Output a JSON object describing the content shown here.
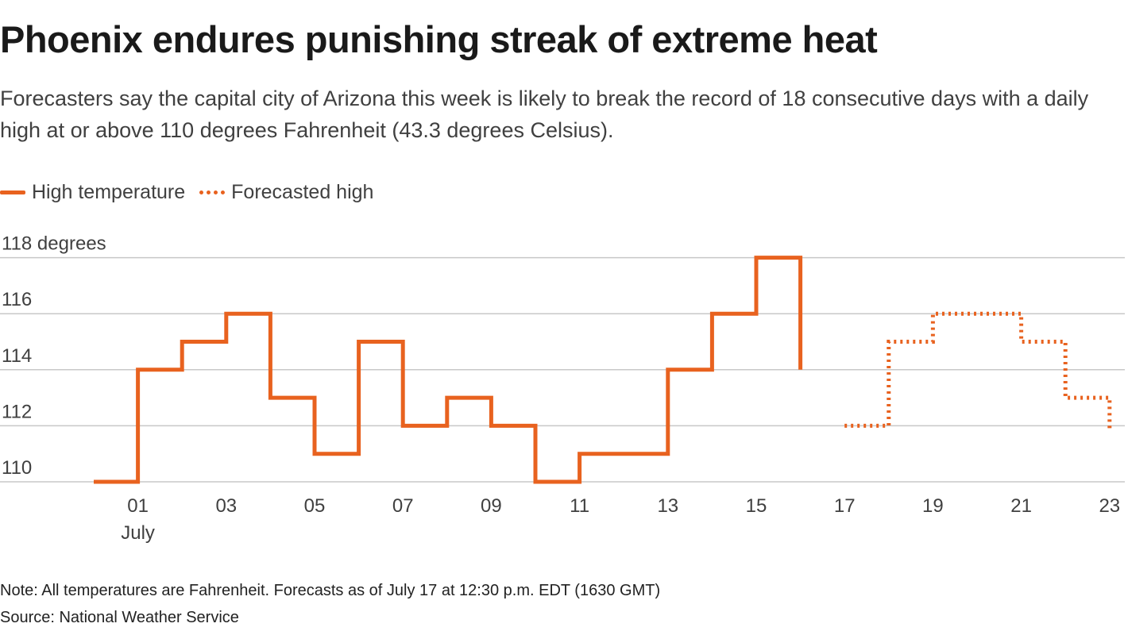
{
  "header": {
    "title": "Phoenix endures punishing streak of extreme heat",
    "subtitle": "Forecasters say the capital city of Arizona this week is likely to break the record of 18 consecutive days with a daily high at or above 110 degrees Fahrenheit (43.3 degrees Celsius)."
  },
  "legend": {
    "observed": "High temperature",
    "forecast": "Forecasted high"
  },
  "footer": {
    "note": "Note: All temperatures are Fahrenheit. Forecasts as of July 17 at 12:30 p.m. EDT (1630 GMT)",
    "source": "Source: National Weather Service"
  },
  "colors": {
    "series": "#e8621f",
    "grid": "#c8c8c8",
    "tick_text": "#404040"
  },
  "chart_data": {
    "type": "line",
    "step": true,
    "y_ticks": [
      {
        "value": 118,
        "label": "118 degrees"
      },
      {
        "value": 116,
        "label": "116"
      },
      {
        "value": 114,
        "label": "114"
      },
      {
        "value": 112,
        "label": "112"
      },
      {
        "value": 110,
        "label": "110"
      }
    ],
    "x_ticks": [
      {
        "day": 1,
        "label": "01",
        "sublabel": "July"
      },
      {
        "day": 3,
        "label": "03"
      },
      {
        "day": 5,
        "label": "05"
      },
      {
        "day": 7,
        "label": "07"
      },
      {
        "day": 9,
        "label": "09"
      },
      {
        "day": 11,
        "label": "11"
      },
      {
        "day": 13,
        "label": "13"
      },
      {
        "day": 15,
        "label": "15"
      },
      {
        "day": 17,
        "label": "17"
      },
      {
        "day": 19,
        "label": "19"
      },
      {
        "day": 21,
        "label": "21"
      },
      {
        "day": 23,
        "label": "23"
      }
    ],
    "series": [
      {
        "name": "High temperature",
        "style": "solid",
        "points": [
          {
            "day": "June 30",
            "value": 110
          },
          {
            "day": "July 1",
            "value": 114
          },
          {
            "day": "July 2",
            "value": 115
          },
          {
            "day": "July 3",
            "value": 116
          },
          {
            "day": "July 4",
            "value": 113
          },
          {
            "day": "July 5",
            "value": 111
          },
          {
            "day": "July 6",
            "value": 115
          },
          {
            "day": "July 7",
            "value": 112
          },
          {
            "day": "July 8",
            "value": 113
          },
          {
            "day": "July 9",
            "value": 112
          },
          {
            "day": "July 10",
            "value": 110
          },
          {
            "day": "July 11",
            "value": 111
          },
          {
            "day": "July 12",
            "value": 111
          },
          {
            "day": "July 13",
            "value": 114
          },
          {
            "day": "July 14",
            "value": 116
          },
          {
            "day": "July 15",
            "value": 118
          },
          {
            "day": "July 16",
            "value": 114
          }
        ]
      },
      {
        "name": "Forecasted high",
        "style": "dotted",
        "points": [
          {
            "day": "July 17",
            "value": 112
          },
          {
            "day": "July 18",
            "value": 115
          },
          {
            "day": "July 19",
            "value": 116
          },
          {
            "day": "July 20",
            "value": 116
          },
          {
            "day": "July 21",
            "value": 115
          },
          {
            "day": "July 22",
            "value": 113
          },
          {
            "day": "July 23",
            "value": 112
          }
        ]
      }
    ]
  }
}
